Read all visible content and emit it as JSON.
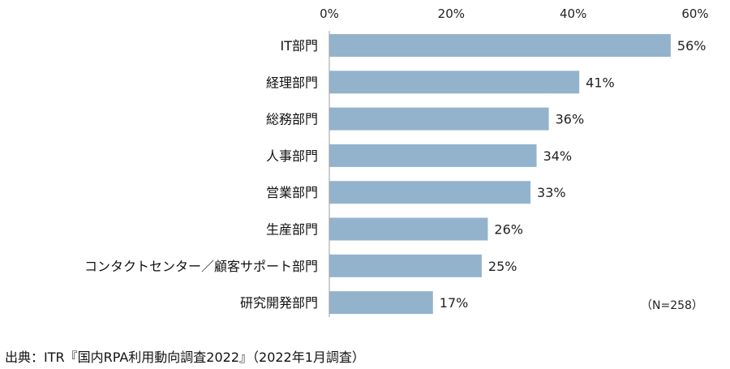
{
  "chart_data": {
    "type": "bar",
    "orientation": "horizontal",
    "categories": [
      "IT部門",
      "経理部門",
      "総務部門",
      "人事部門",
      "営業部門",
      "生産部門",
      "コンタクトセンター／顧客サポート部門",
      "研究開発部門"
    ],
    "values": [
      56,
      41,
      36,
      34,
      33,
      26,
      25,
      17
    ],
    "value_labels": [
      "56%",
      "41%",
      "36%",
      "34%",
      "33%",
      "26%",
      "25%",
      "17%"
    ],
    "xticks": [
      0,
      20,
      40,
      60
    ],
    "xtick_labels": [
      "0%",
      "20%",
      "40%",
      "60%"
    ],
    "xlim": [
      0,
      60
    ],
    "xaxis_position": "top",
    "grid": false,
    "legend": "none",
    "bar_color": "#93b3cd",
    "note": "（N=258）"
  },
  "source": "出典：ITR『国内RPA利用動向調査2022』（2022年1月調査）"
}
